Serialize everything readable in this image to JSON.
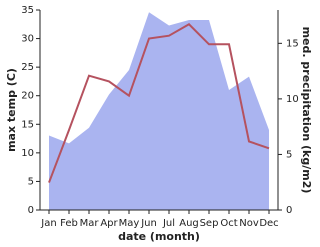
{
  "chart_data": {
    "type": "line-area",
    "x_label": "date (month)",
    "y_label": "max temp (C)",
    "y2_label": "med. precipitation (kg/m2)",
    "categories": [
      "Jan",
      "Feb",
      "Mar",
      "Apr",
      "May",
      "Jun",
      "Jul",
      "Aug",
      "Sep",
      "Oct",
      "Nov",
      "Dec"
    ],
    "series": [
      {
        "name": "med. precipitation",
        "color": "#aab4f0",
        "axis": "y2",
        "kind": "area",
        "values": [
          6.7,
          6.0,
          7.4,
          10.4,
          12.6,
          17.8,
          16.6,
          17.1,
          17.1,
          10.8,
          12.0,
          7.2
        ]
      },
      {
        "name": "max temp",
        "color": "#b5525f",
        "kind": "line",
        "values": [
          4.8,
          14.0,
          23.5,
          22.5,
          20.0,
          30.0,
          30.5,
          32.5,
          29.0,
          29.0,
          12.0,
          10.8
        ]
      }
    ],
    "ylim": [
      0,
      35
    ],
    "yticks": [
      0,
      5,
      10,
      15,
      20,
      25,
      30,
      35
    ],
    "y2lim": [
      0,
      18
    ],
    "y2ticks": [
      0,
      5,
      10,
      15
    ]
  }
}
